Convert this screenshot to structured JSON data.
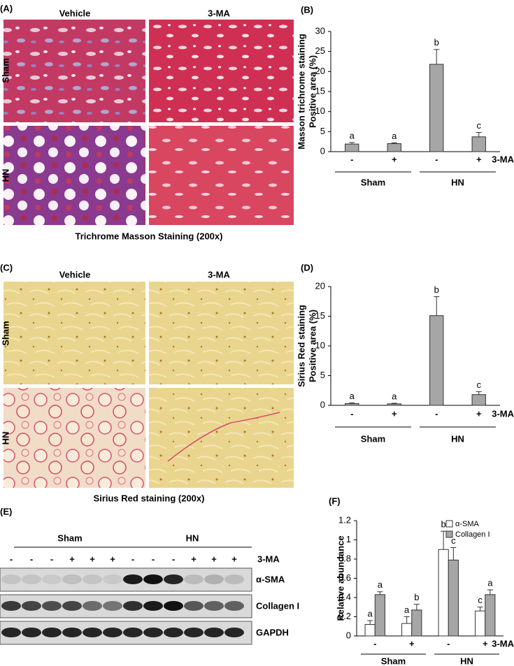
{
  "panels": {
    "A": {
      "label": "(A)",
      "columns": [
        "Vehicle",
        "3-MA"
      ],
      "rows": [
        "Sham",
        "HN"
      ],
      "caption": "Trichrome Masson Staining (200x)"
    },
    "C": {
      "label": "(C)",
      "columns": [
        "Vehicle",
        "3-MA"
      ],
      "rows": [
        "Sham",
        "HN"
      ],
      "caption": "Sirius Red staining (200x)"
    },
    "E": {
      "label": "(E)",
      "groups": [
        "Sham",
        "HN"
      ],
      "lanes": [
        "-",
        "-",
        "-",
        "+",
        "+",
        "+",
        "-",
        "-",
        "-",
        "+",
        "+",
        "+"
      ],
      "treatment": "3-MA",
      "blots": [
        "α-SMA",
        "Collagen I",
        "GAPDH"
      ]
    }
  },
  "chart_data": [
    {
      "type": "bar",
      "panel_label": "(B)",
      "y_label": [
        "Masson trichrome staining",
        "Positive area (%)"
      ],
      "categories": [
        "-",
        "+",
        "-",
        "+"
      ],
      "groups": [
        "Sham",
        "HN"
      ],
      "x_label": "3-MA",
      "values": [
        1.9,
        2.0,
        21.8,
        3.7
      ],
      "errors": [
        0.4,
        0.2,
        3.7,
        1.1
      ],
      "annotations": [
        "a",
        "a",
        "b",
        "c"
      ],
      "color": "#a6a6a6",
      "ylim": [
        0,
        30
      ],
      "yticks": [
        0,
        5,
        10,
        15,
        20,
        25,
        30
      ]
    },
    {
      "type": "bar",
      "panel_label": "(D)",
      "y_label": [
        "Sirius Red staining",
        "Positive area (%)"
      ],
      "categories": [
        "-",
        "+",
        "-",
        "+"
      ],
      "groups": [
        "Sham",
        "HN"
      ],
      "x_label": "3-MA",
      "values": [
        0.3,
        0.25,
        15.1,
        1.8
      ],
      "errors": [
        0.1,
        0.1,
        3.2,
        0.5
      ],
      "annotations": [
        "a",
        "a",
        "b",
        "c"
      ],
      "color": "#a6a6a6",
      "ylim": [
        0,
        20
      ],
      "yticks": [
        0,
        5,
        10,
        15,
        20
      ]
    },
    {
      "type": "grouped-bar",
      "panel_label": "(F)",
      "y_label": [
        "Relative abundance"
      ],
      "categories": [
        "-",
        "+",
        "-",
        "+"
      ],
      "groups": [
        "Sham",
        "HN"
      ],
      "x_label": "3-MA",
      "legend": "top-right",
      "series": [
        {
          "name": "α-SMA",
          "color": "#ffffff",
          "values": [
            0.12,
            0.13,
            0.9,
            0.26
          ],
          "errors": [
            0.04,
            0.07,
            0.19,
            0.04
          ],
          "annotations": [
            "a",
            "a",
            "b",
            "c"
          ]
        },
        {
          "name": "Collagen I",
          "color": "#a6a6a6",
          "values": [
            0.43,
            0.27,
            0.79,
            0.43
          ],
          "errors": [
            0.03,
            0.06,
            0.13,
            0.05
          ],
          "annotations": [
            "a",
            "b",
            "c",
            "a"
          ]
        }
      ],
      "ylim": [
        0,
        1.2
      ],
      "yticks": [
        0,
        0.2,
        0.4,
        0.6,
        0.8,
        1,
        1.2
      ]
    }
  ]
}
